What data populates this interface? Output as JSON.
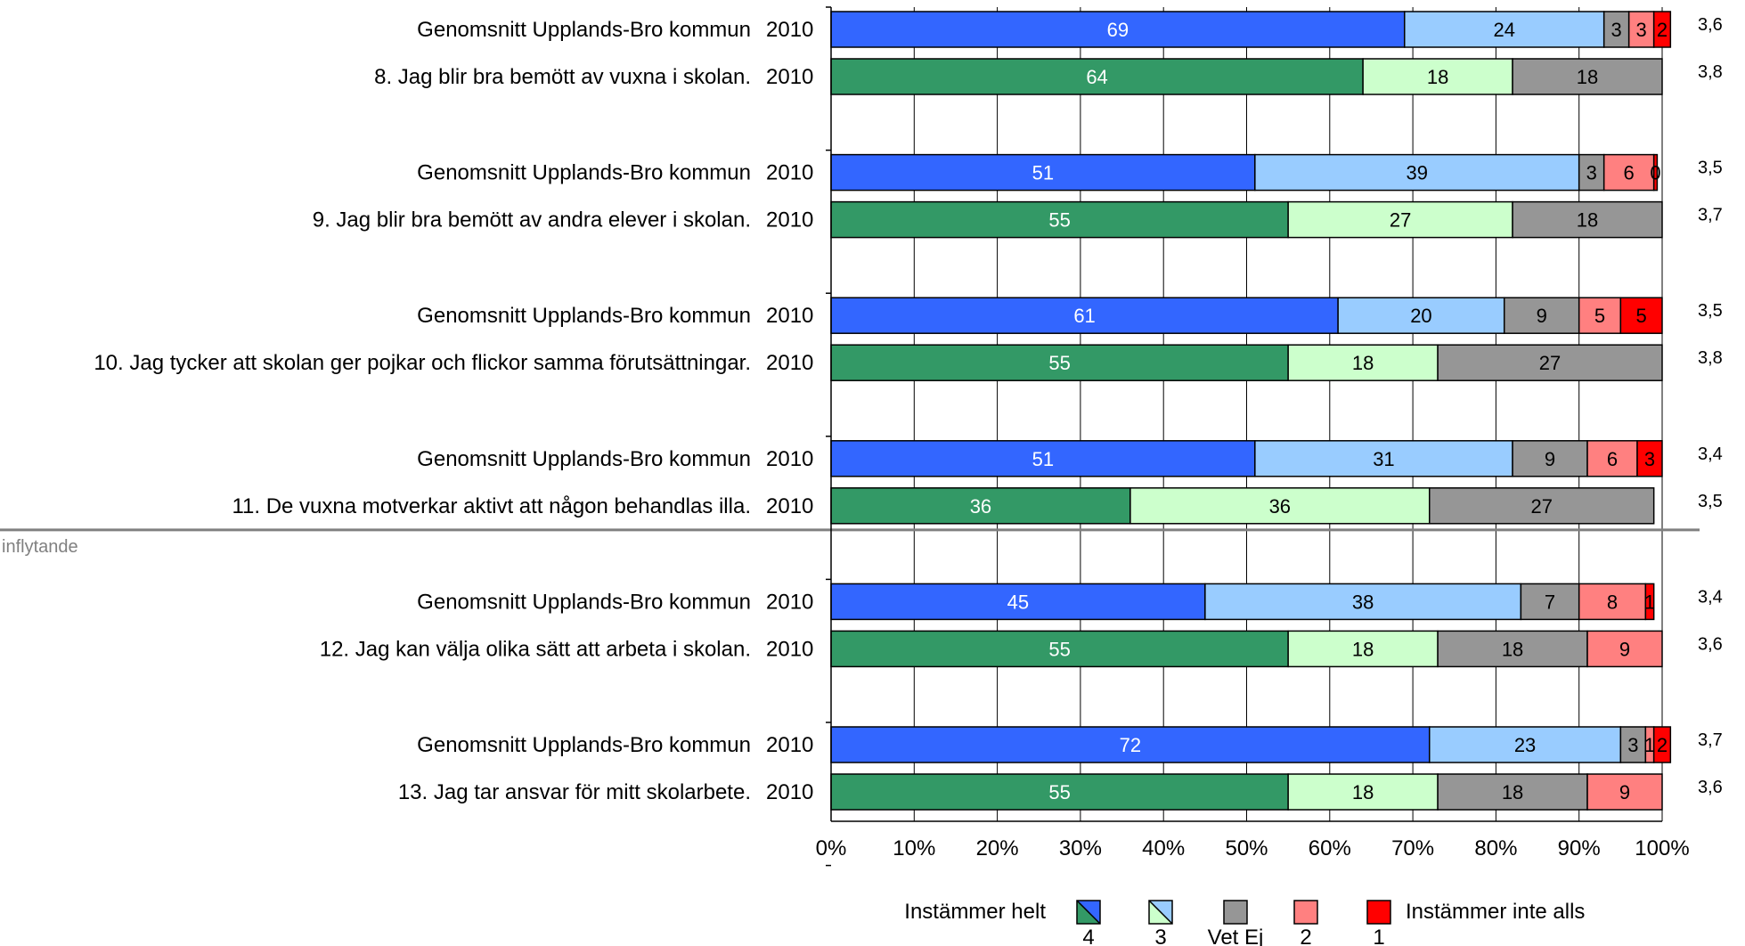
{
  "chart_data": {
    "type": "bar",
    "orientation": "horizontal",
    "stacked": true,
    "percent_scale": true,
    "xlim": [
      0,
      100
    ],
    "x_ticks": [
      "0%",
      "10%",
      "20%",
      "30%",
      "40%",
      "50%",
      "60%",
      "70%",
      "80%",
      "90%",
      "100%"
    ],
    "grid": true,
    "colors": {
      "k4": "#3366ff",
      "k3": "#99ccff",
      "vetej": "#969696",
      "k2": "#ff8080",
      "k1": "#ff0000",
      "s4": "#339966",
      "s3": "#ccffcc"
    },
    "section_label": "inflytande",
    "rows": [
      {
        "label": "Genomsnitt Upplands-Bro kommun",
        "year": "2010",
        "kind": "kommun",
        "values": [
          69,
          24,
          3,
          3,
          2
        ],
        "labels": [
          "69",
          "24",
          "3",
          "3",
          "2"
        ],
        "mean": "3,6"
      },
      {
        "label": "8.  Jag blir bra bemött av vuxna i skolan.",
        "year": "2010",
        "kind": "school",
        "values": [
          64,
          18,
          18,
          0,
          0
        ],
        "labels": [
          "64",
          "18",
          "18",
          "",
          ""
        ],
        "mean": "3,8"
      },
      {
        "label": "Genomsnitt Upplands-Bro kommun",
        "year": "2010",
        "kind": "kommun",
        "values": [
          51,
          39,
          3,
          6,
          0.4
        ],
        "labels": [
          "51",
          "39",
          "3",
          "6",
          "0"
        ],
        "mean": "3,5"
      },
      {
        "label": "9.  Jag blir bra bemött av andra elever i skolan.",
        "year": "2010",
        "kind": "school",
        "values": [
          55,
          27,
          18,
          0,
          0
        ],
        "labels": [
          "55",
          "27",
          "18",
          "",
          ""
        ],
        "mean": "3,7"
      },
      {
        "label": "Genomsnitt Upplands-Bro kommun",
        "year": "2010",
        "kind": "kommun",
        "values": [
          61,
          20,
          9,
          5,
          5
        ],
        "labels": [
          "61",
          "20",
          "9",
          "5",
          "5"
        ],
        "mean": "3,5"
      },
      {
        "label": "10.  Jag tycker att skolan ger pojkar och flickor samma förutsättningar.",
        "year": "2010",
        "kind": "school",
        "values": [
          55,
          18,
          27,
          0,
          0
        ],
        "labels": [
          "55",
          "18",
          "27",
          "",
          ""
        ],
        "mean": "3,8"
      },
      {
        "label": "Genomsnitt Upplands-Bro kommun",
        "year": "2010",
        "kind": "kommun",
        "values": [
          51,
          31,
          9,
          6,
          3
        ],
        "labels": [
          "51",
          "31",
          "9",
          "6",
          "3"
        ],
        "mean": "3,4"
      },
      {
        "label": "11.  De vuxna motverkar aktivt att någon behandlas illa.",
        "year": "2010",
        "kind": "school",
        "values": [
          36,
          36,
          27,
          0,
          0
        ],
        "labels": [
          "36",
          "36",
          "27",
          "",
          ""
        ],
        "mean": "3,5"
      },
      {
        "label": "Genomsnitt Upplands-Bro kommun",
        "year": "2010",
        "kind": "kommun",
        "values": [
          45,
          38,
          7,
          8,
          1
        ],
        "labels": [
          "45",
          "38",
          "7",
          "8",
          "1"
        ],
        "mean": "3,4"
      },
      {
        "label": "12.  Jag kan välja olika sätt att arbeta i skolan.",
        "year": "2010",
        "kind": "school",
        "values": [
          55,
          18,
          18,
          9,
          0
        ],
        "labels": [
          "55",
          "18",
          "18",
          "9",
          ""
        ],
        "mean": "3,6"
      },
      {
        "label": "Genomsnitt Upplands-Bro kommun",
        "year": "2010",
        "kind": "kommun",
        "values": [
          72,
          23,
          3,
          1,
          2
        ],
        "labels": [
          "72",
          "23",
          "3",
          "1",
          "2"
        ],
        "mean": "3,7"
      },
      {
        "label": "13.  Jag tar ansvar för mitt skolarbete.",
        "year": "2010",
        "kind": "school",
        "values": [
          55,
          18,
          18,
          9,
          0
        ],
        "labels": [
          "55",
          "18",
          "18",
          "9",
          ""
        ],
        "mean": "3,6"
      }
    ],
    "legend": {
      "left_text": "Instämmer helt",
      "right_text": "Instämmer inte alls",
      "items": [
        {
          "key": "4",
          "label": "4"
        },
        {
          "key": "3",
          "label": "3"
        },
        {
          "key": "vetej",
          "label": "Vet Ej"
        },
        {
          "key": "2",
          "label": "2"
        },
        {
          "key": "1",
          "label": "1"
        }
      ]
    }
  }
}
